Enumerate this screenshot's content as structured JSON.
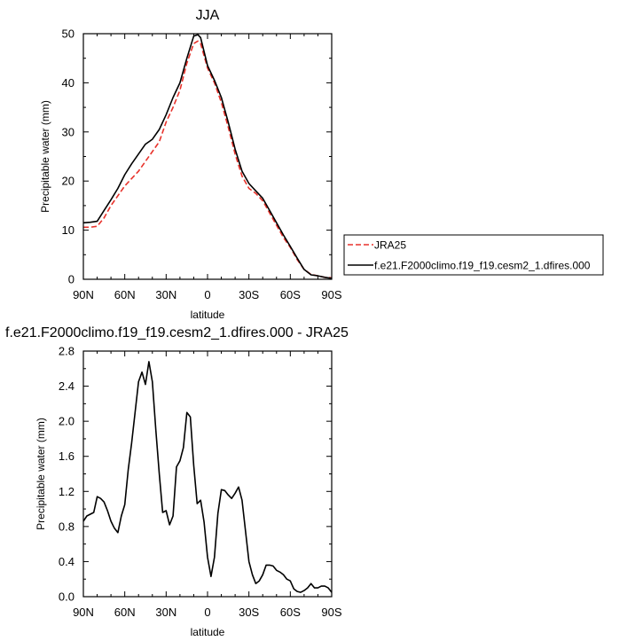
{
  "chart_data": [
    {
      "type": "line",
      "title": "JJA",
      "xlabel": "latitude",
      "ylabel": "Precipitable water (mm)",
      "xlim": [
        90,
        -90
      ],
      "ylim": [
        0,
        50
      ],
      "x_ticks": [
        90,
        60,
        30,
        0,
        -30,
        -60,
        -90
      ],
      "x_tick_labels": [
        "90N",
        "60N",
        "30N",
        "0",
        "30S",
        "60S",
        "90S"
      ],
      "y_ticks": [
        0,
        10,
        20,
        30,
        40,
        50
      ],
      "y_tick_labels": [
        "0",
        "10",
        "20",
        "30",
        "40",
        "50"
      ],
      "legend_position": "right",
      "series": [
        {
          "name": "JRA25",
          "color": "#e8322b",
          "dash": "dashed",
          "x": [
            90,
            85,
            80,
            75,
            70,
            65,
            60,
            55,
            50,
            45,
            40,
            35,
            30,
            25,
            20,
            15,
            10,
            7,
            5,
            0,
            -5,
            -10,
            -15,
            -20,
            -25,
            -30,
            -35,
            -40,
            -45,
            -50,
            -55,
            -60,
            -65,
            -70,
            -75,
            -80,
            -85,
            -90
          ],
          "y": [
            10.6,
            10.6,
            10.8,
            12.5,
            15,
            17,
            19,
            20.5,
            22,
            24,
            26,
            28,
            32,
            35,
            38.5,
            44,
            48,
            48.5,
            48,
            43,
            40,
            36,
            31,
            25.5,
            21,
            18.5,
            17.5,
            16,
            13.5,
            11,
            8.5,
            6.5,
            4,
            2,
            1,
            0.7,
            0.4,
            0.3
          ]
        },
        {
          "name": "f.e21.F2000climo.f19_f19.cesm2_1.dfires.000",
          "color": "#000000",
          "dash": "solid",
          "x": [
            90,
            85,
            80,
            75,
            70,
            65,
            60,
            55,
            50,
            45,
            40,
            35,
            30,
            25,
            20,
            15,
            10,
            7,
            5,
            0,
            -5,
            -10,
            -15,
            -20,
            -25,
            -30,
            -35,
            -40,
            -45,
            -50,
            -55,
            -60,
            -65,
            -70,
            -75,
            -80,
            -85,
            -90
          ],
          "y": [
            11.5,
            11.6,
            11.8,
            14,
            16.2,
            18.5,
            21.3,
            23.5,
            25.5,
            27.5,
            28.5,
            30.5,
            33.5,
            37,
            40,
            45,
            49.5,
            49.8,
            49.2,
            43.5,
            40.5,
            37,
            32,
            26.5,
            22,
            19.5,
            18,
            16.5,
            14,
            11.5,
            9,
            6.7,
            4.3,
            2,
            0.9,
            0.7,
            0.4,
            0.2
          ]
        }
      ]
    },
    {
      "type": "line",
      "title": "f.e21.F2000climo.f19_f19.cesm2_1.dfires.000 - JRA25",
      "xlabel": "latitude",
      "ylabel": "Precipitable water (mm)",
      "xlim": [
        90,
        -90
      ],
      "ylim": [
        0,
        2.8
      ],
      "x_ticks": [
        90,
        60,
        30,
        0,
        -30,
        -60,
        -90
      ],
      "x_tick_labels": [
        "90N",
        "60N",
        "30N",
        "0",
        "30S",
        "60S",
        "90S"
      ],
      "y_ticks": [
        0,
        0.4,
        0.8,
        1.2,
        1.6,
        2.0,
        2.4,
        2.8
      ],
      "y_tick_labels": [
        "0.0",
        "0.4",
        "0.8",
        "1.2",
        "1.6",
        "2.0",
        "2.4",
        "2.8"
      ],
      "series": [
        {
          "color": "#000000",
          "dash": "solid",
          "x": [
            90,
            87.5,
            85,
            82.5,
            80,
            77.5,
            75,
            72.5,
            70,
            67.5,
            65,
            62.5,
            60,
            57.5,
            55,
            52.5,
            50,
            47.5,
            45,
            42.5,
            40,
            37.5,
            35,
            32.5,
            30,
            27.5,
            25,
            22.5,
            20,
            17.5,
            15,
            12.5,
            10,
            7.5,
            5,
            2.5,
            0,
            -2.5,
            -5,
            -7.5,
            -10,
            -12.5,
            -15,
            -17.5,
            -20,
            -22.5,
            -25,
            -27.5,
            -30,
            -32.5,
            -35,
            -37.5,
            -40,
            -42.5,
            -45,
            -47.5,
            -50,
            -52.5,
            -55,
            -57.5,
            -60,
            -62.5,
            -65,
            -67.5,
            -70,
            -72.5,
            -75,
            -77.5,
            -80,
            -82.5,
            -85,
            -87.5,
            -90
          ],
          "y": [
            0.86,
            0.92,
            0.94,
            0.96,
            1.14,
            1.12,
            1.08,
            0.98,
            0.86,
            0.78,
            0.73,
            0.92,
            1.05,
            1.45,
            1.75,
            2.1,
            2.45,
            2.56,
            2.42,
            2.68,
            2.45,
            1.9,
            1.4,
            0.96,
            0.98,
            0.82,
            0.92,
            1.48,
            1.55,
            1.7,
            2.1,
            2.05,
            1.5,
            1.06,
            1.1,
            0.85,
            0.45,
            0.23,
            0.45,
            0.95,
            1.22,
            1.21,
            1.16,
            1.12,
            1.18,
            1.25,
            1.1,
            0.75,
            0.4,
            0.25,
            0.15,
            0.18,
            0.25,
            0.36,
            0.36,
            0.35,
            0.3,
            0.28,
            0.25,
            0.2,
            0.18,
            0.09,
            0.06,
            0.05,
            0.07,
            0.1,
            0.15,
            0.1,
            0.1,
            0.12,
            0.12,
            0.1,
            0.05
          ]
        }
      ]
    }
  ]
}
